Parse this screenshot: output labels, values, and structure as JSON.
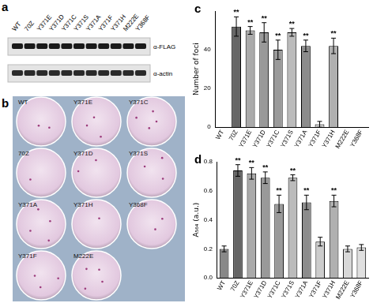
{
  "blot": {
    "panel": "a",
    "lanes": [
      "WT",
      "70Z",
      "Y371E",
      "Y371D",
      "Y371C",
      "Y371S",
      "Y371A",
      "Y371F",
      "Y371H",
      "M222E",
      "Y368F"
    ],
    "rows": [
      "α-FLAG",
      "α-actin"
    ]
  },
  "plates": {
    "panel": "b",
    "rows": [
      [
        "WT",
        "Y371E",
        "Y371C"
      ],
      [
        "70Z",
        "Y371D",
        "Y371S"
      ],
      [
        "Y371A",
        "Y371H",
        "Y368F"
      ],
      [
        "Y371F",
        "M222E"
      ]
    ]
  },
  "chart_data": [
    {
      "panel": "c",
      "type": "bar",
      "y_label": "Number of foci",
      "categories": [
        "WT",
        "70Z",
        "Y371E",
        "Y371D",
        "Y371C",
        "Y371S",
        "Y371A",
        "Y371F",
        "Y371H",
        "M222E",
        "Y368F"
      ],
      "values": [
        0,
        52,
        50,
        49,
        40,
        49,
        42,
        1.5,
        42,
        0,
        0
      ],
      "errors": [
        null,
        5,
        2,
        5,
        5,
        2,
        3,
        1.5,
        4,
        null,
        null
      ],
      "significance": [
        null,
        "**",
        "**",
        "**",
        "**",
        "**",
        "**",
        null,
        "**",
        null,
        null
      ],
      "colors": [
        "#888888",
        "#666666",
        "#aaaaaa",
        "#999999",
        "#9a9a9a",
        "#bbbbbb",
        "#8c8c8c",
        "#cccccc",
        "#b0b0b0",
        "#d8d8d8",
        "#e0e0e0"
      ],
      "ylim": [
        0,
        60
      ],
      "yticks": [
        0,
        20,
        40
      ],
      "grid": false
    },
    {
      "panel": "d",
      "type": "bar",
      "y_label": "A₅₆₄ (a.u.)",
      "categories": [
        "WT",
        "70Z",
        "Y371E",
        "Y371D",
        "Y371C",
        "Y371S",
        "Y371A",
        "Y371F",
        "Y371H",
        "M222E",
        "Y368F"
      ],
      "values": [
        0.2,
        0.74,
        0.72,
        0.69,
        0.51,
        0.69,
        0.52,
        0.25,
        0.53,
        0.2,
        0.21
      ],
      "errors": [
        0.02,
        0.04,
        0.04,
        0.04,
        0.06,
        0.02,
        0.05,
        0.03,
        0.04,
        0.02,
        0.02
      ],
      "significance": [
        null,
        "**",
        "**",
        "**",
        "**",
        "**",
        "**",
        null,
        "**",
        null,
        null
      ],
      "colors": [
        "#888888",
        "#666666",
        "#aaaaaa",
        "#999999",
        "#9a9a9a",
        "#bbbbbb",
        "#8c8c8c",
        "#cccccc",
        "#b0b0b0",
        "#d8d8d8",
        "#e0e0e0"
      ],
      "ylim": [
        0,
        0.8
      ],
      "yticks": [
        {
          "value": 0,
          "label": "0.0"
        },
        {
          "value": 0.2,
          "label": "0.2"
        },
        {
          "value": 0.4,
          "label": "0.4"
        },
        {
          "value": 0.6,
          "label": "0.6"
        },
        {
          "value": 0.8,
          "label": "0.8"
        }
      ],
      "grid": false
    }
  ]
}
